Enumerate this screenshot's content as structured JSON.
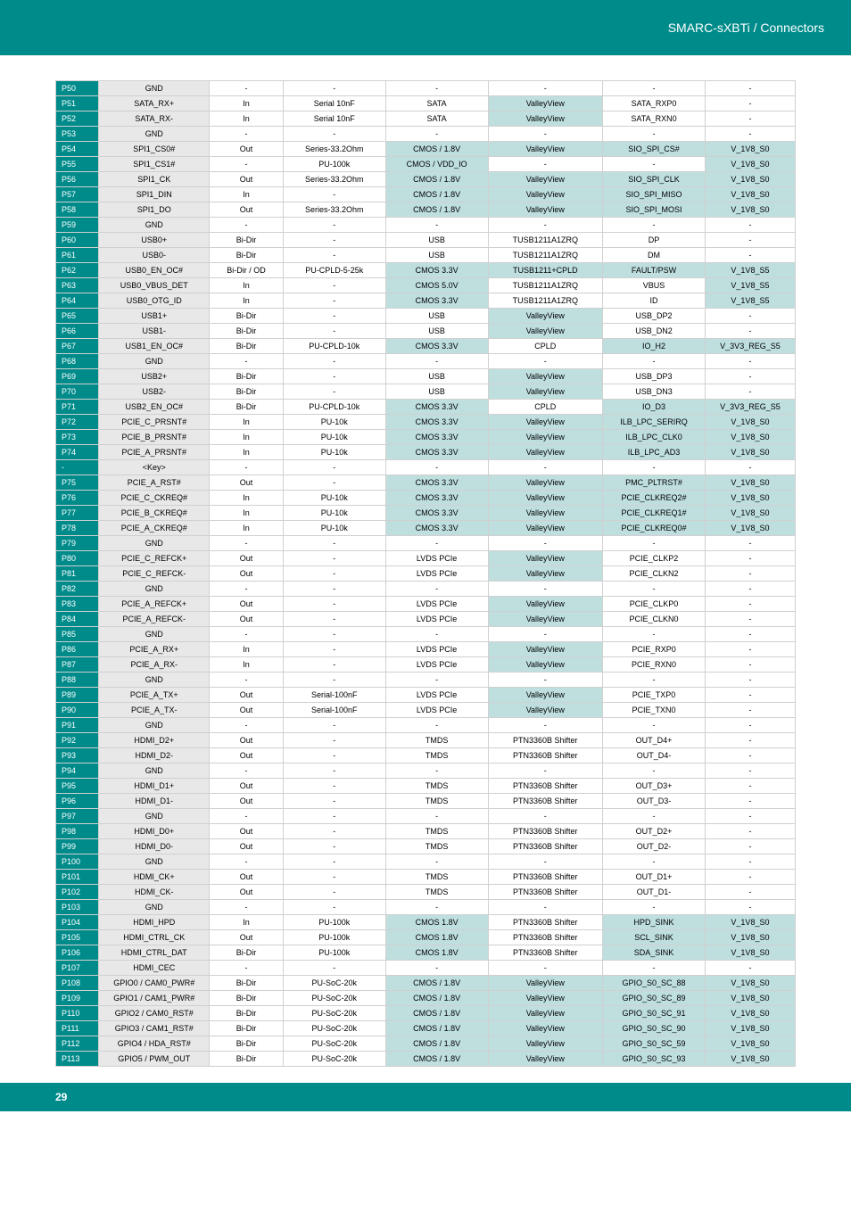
{
  "header": {
    "title": "SMARC-sXBTi / Connectors"
  },
  "footer": {
    "page": "29"
  },
  "styling": {
    "teal": "#008b8b",
    "teal_light": "#bfdfdf",
    "gray_bg": "#e8e8e8",
    "border": "#d0d0d0",
    "font_size_table": 9,
    "font_size_header": 14,
    "font_size_footer": 12
  },
  "columns": [
    "pin",
    "name",
    "dir",
    "term",
    "sig",
    "chip",
    "conn",
    "pwr"
  ],
  "rows": [
    {
      "pin": "P50",
      "name": "GND",
      "dir": "-",
      "term": "-",
      "sig": "-",
      "chip": "-",
      "conn": "-",
      "pwr": "-"
    },
    {
      "pin": "P51",
      "name": "SATA_RX+",
      "dir": "In",
      "term": "Serial 10nF",
      "sig": "SATA",
      "chip": "ValleyView",
      "conn": "SATA_RXP0",
      "pwr": "-"
    },
    {
      "pin": "P52",
      "name": "SATA_RX-",
      "dir": "In",
      "term": "Serial 10nF",
      "sig": "SATA",
      "chip": "ValleyView",
      "conn": "SATA_RXN0",
      "pwr": "-"
    },
    {
      "pin": "P53",
      "name": "GND",
      "dir": "-",
      "term": "-",
      "sig": "-",
      "chip": "-",
      "conn": "-",
      "pwr": "-"
    },
    {
      "pin": "P54",
      "name": "SPI1_CS0#",
      "dir": "Out",
      "term": "Series-33.2Ohm",
      "sig": "CMOS / 1.8V",
      "chip": "ValleyView",
      "conn": "SIO_SPI_CS#",
      "pwr": "V_1V8_S0"
    },
    {
      "pin": "P55",
      "name": "SPI1_CS1#",
      "dir": "-",
      "term": "PU-100k",
      "sig": "CMOS / VDD_IO",
      "chip": "-",
      "conn": "-",
      "pwr": "V_1V8_S0"
    },
    {
      "pin": "P56",
      "name": "SPI1_CK",
      "dir": "Out",
      "term": "Series-33.2Ohm",
      "sig": "CMOS / 1.8V",
      "chip": "ValleyView",
      "conn": "SIO_SPI_CLK",
      "pwr": "V_1V8_S0"
    },
    {
      "pin": "P57",
      "name": "SPI1_DIN",
      "dir": "In",
      "term": "-",
      "sig": "CMOS / 1.8V",
      "chip": "ValleyView",
      "conn": "SIO_SPI_MISO",
      "pwr": "V_1V8_S0"
    },
    {
      "pin": "P58",
      "name": "SPI1_DO",
      "dir": "Out",
      "term": "Series-33.2Ohm",
      "sig": "CMOS / 1.8V",
      "chip": "ValleyView",
      "conn": "SIO_SPI_MOSI",
      "pwr": "V_1V8_S0"
    },
    {
      "pin": "P59",
      "name": "GND",
      "dir": "-",
      "term": "-",
      "sig": "-",
      "chip": "-",
      "conn": "-",
      "pwr": "-"
    },
    {
      "pin": "P60",
      "name": "USB0+",
      "dir": "Bi-Dir",
      "term": "-",
      "sig": "USB",
      "chip": "TUSB1211A1ZRQ",
      "conn": "DP",
      "pwr": "-"
    },
    {
      "pin": "P61",
      "name": "USB0-",
      "dir": "Bi-Dir",
      "term": "-",
      "sig": "USB",
      "chip": "TUSB1211A1ZRQ",
      "conn": "DM",
      "pwr": "-"
    },
    {
      "pin": "P62",
      "name": "USB0_EN_OC#",
      "dir": "Bi-Dir / OD",
      "term": "PU-CPLD-5-25k",
      "sig": "CMOS 3.3V",
      "chip": "TUSB1211+CPLD",
      "conn": "FAULT/PSW",
      "pwr": "V_1V8_S5"
    },
    {
      "pin": "P63",
      "name": "USB0_VBUS_DET",
      "dir": "In",
      "term": "-",
      "sig": "CMOS 5.0V",
      "chip": "TUSB1211A1ZRQ",
      "conn": "VBUS",
      "pwr": "V_1V8_S5"
    },
    {
      "pin": "P64",
      "name": "USB0_OTG_ID",
      "dir": "In",
      "term": "-",
      "sig": "CMOS 3.3V",
      "chip": "TUSB1211A1ZRQ",
      "conn": "ID",
      "pwr": "V_1V8_S5"
    },
    {
      "pin": "P65",
      "name": "USB1+",
      "dir": "Bi-Dir",
      "term": "-",
      "sig": "USB",
      "chip": "ValleyView",
      "conn": "USB_DP2",
      "pwr": "-"
    },
    {
      "pin": "P66",
      "name": "USB1-",
      "dir": "Bi-Dir",
      "term": "-",
      "sig": "USB",
      "chip": "ValleyView",
      "conn": "USB_DN2",
      "pwr": "-"
    },
    {
      "pin": "P67",
      "name": "USB1_EN_OC#",
      "dir": "Bi-Dir",
      "term": "PU-CPLD-10k",
      "sig": "CMOS 3.3V",
      "chip": "CPLD",
      "conn": "IO_H2",
      "pwr": "V_3V3_REG_S5"
    },
    {
      "pin": "P68",
      "name": "GND",
      "dir": "-",
      "term": "-",
      "sig": "-",
      "chip": "-",
      "conn": "-",
      "pwr": "-"
    },
    {
      "pin": "P69",
      "name": "USB2+",
      "dir": "Bi-Dir",
      "term": "-",
      "sig": "USB",
      "chip": "ValleyView",
      "conn": "USB_DP3",
      "pwr": "-"
    },
    {
      "pin": "P70",
      "name": "USB2-",
      "dir": "Bi-Dir",
      "term": "-",
      "sig": "USB",
      "chip": "ValleyView",
      "conn": "USB_DN3",
      "pwr": "-"
    },
    {
      "pin": "P71",
      "name": "USB2_EN_OC#",
      "dir": "Bi-Dir",
      "term": "PU-CPLD-10k",
      "sig": "CMOS 3.3V",
      "chip": "CPLD",
      "conn": "IO_D3",
      "pwr": "V_3V3_REG_S5"
    },
    {
      "pin": "P72",
      "name": "PCIE_C_PRSNT#",
      "dir": "In",
      "term": "PU-10k",
      "sig": "CMOS 3.3V",
      "chip": "ValleyView",
      "conn": "ILB_LPC_SERIRQ",
      "pwr": "V_1V8_S0"
    },
    {
      "pin": "P73",
      "name": "PCIE_B_PRSNT#",
      "dir": "In",
      "term": "PU-10k",
      "sig": "CMOS 3.3V",
      "chip": "ValleyView",
      "conn": "ILB_LPC_CLK0",
      "pwr": "V_1V8_S0"
    },
    {
      "pin": "P74",
      "name": "PCIE_A_PRSNT#",
      "dir": "In",
      "term": "PU-10k",
      "sig": "CMOS 3.3V",
      "chip": "ValleyView",
      "conn": "ILB_LPC_AD3",
      "pwr": "V_1V8_S0"
    },
    {
      "pin": "-",
      "name": "<Key>",
      "dir": "-",
      "term": "-",
      "sig": "-",
      "chip": "-",
      "conn": "-",
      "pwr": "-"
    },
    {
      "pin": "P75",
      "name": "PCIE_A_RST#",
      "dir": "Out",
      "term": "-",
      "sig": "CMOS 3.3V",
      "chip": "ValleyView",
      "conn": "PMC_PLTRST#",
      "pwr": "V_1V8_S0"
    },
    {
      "pin": "P76",
      "name": "PCIE_C_CKREQ#",
      "dir": "In",
      "term": "PU-10k",
      "sig": "CMOS 3.3V",
      "chip": "ValleyView",
      "conn": "PCIE_CLKREQ2#",
      "pwr": "V_1V8_S0"
    },
    {
      "pin": "P77",
      "name": "PCIE_B_CKREQ#",
      "dir": "In",
      "term": "PU-10k",
      "sig": "CMOS 3.3V",
      "chip": "ValleyView",
      "conn": "PCIE_CLKREQ1#",
      "pwr": "V_1V8_S0"
    },
    {
      "pin": "P78",
      "name": "PCIE_A_CKREQ#",
      "dir": "In",
      "term": "PU-10k",
      "sig": "CMOS 3.3V",
      "chip": "ValleyView",
      "conn": "PCIE_CLKREQ0#",
      "pwr": "V_1V8_S0"
    },
    {
      "pin": "P79",
      "name": "GND",
      "dir": "-",
      "term": "-",
      "sig": "-",
      "chip": "-",
      "conn": "-",
      "pwr": "-"
    },
    {
      "pin": "P80",
      "name": "PCIE_C_REFCK+",
      "dir": "Out",
      "term": "-",
      "sig": "LVDS PCIe",
      "chip": "ValleyView",
      "conn": "PCIE_CLKP2",
      "pwr": "-"
    },
    {
      "pin": "P81",
      "name": "PCIE_C_REFCK-",
      "dir": "Out",
      "term": "-",
      "sig": "LVDS PCIe",
      "chip": "ValleyView",
      "conn": "PCIE_CLKN2",
      "pwr": "-"
    },
    {
      "pin": "P82",
      "name": "GND",
      "dir": "-",
      "term": "-",
      "sig": "-",
      "chip": "-",
      "conn": "-",
      "pwr": "-"
    },
    {
      "pin": "P83",
      "name": "PCIE_A_REFCK+",
      "dir": "Out",
      "term": "-",
      "sig": "LVDS PCIe",
      "chip": "ValleyView",
      "conn": "PCIE_CLKP0",
      "pwr": "-"
    },
    {
      "pin": "P84",
      "name": "PCIE_A_REFCK-",
      "dir": "Out",
      "term": "-",
      "sig": "LVDS PCIe",
      "chip": "ValleyView",
      "conn": "PCIE_CLKN0",
      "pwr": "-"
    },
    {
      "pin": "P85",
      "name": "GND",
      "dir": "-",
      "term": "-",
      "sig": "-",
      "chip": "-",
      "conn": "-",
      "pwr": "-"
    },
    {
      "pin": "P86",
      "name": "PCIE_A_RX+",
      "dir": "In",
      "term": "-",
      "sig": "LVDS PCIe",
      "chip": "ValleyView",
      "conn": "PCIE_RXP0",
      "pwr": "-"
    },
    {
      "pin": "P87",
      "name": "PCIE_A_RX-",
      "dir": "In",
      "term": "-",
      "sig": "LVDS PCIe",
      "chip": "ValleyView",
      "conn": "PCIE_RXN0",
      "pwr": "-"
    },
    {
      "pin": "P88",
      "name": "GND",
      "dir": "-",
      "term": "-",
      "sig": "-",
      "chip": "-",
      "conn": "-",
      "pwr": "-"
    },
    {
      "pin": "P89",
      "name": "PCIE_A_TX+",
      "dir": "Out",
      "term": "Serial-100nF",
      "sig": "LVDS PCIe",
      "chip": "ValleyView",
      "conn": "PCIE_TXP0",
      "pwr": "-"
    },
    {
      "pin": "P90",
      "name": "PCIE_A_TX-",
      "dir": "Out",
      "term": "Serial-100nF",
      "sig": "LVDS PCIe",
      "chip": "ValleyView",
      "conn": "PCIE_TXN0",
      "pwr": "-"
    },
    {
      "pin": "P91",
      "name": "GND",
      "dir": "-",
      "term": "-",
      "sig": "-",
      "chip": "-",
      "conn": "-",
      "pwr": "-"
    },
    {
      "pin": "P92",
      "name": "HDMI_D2+",
      "dir": "Out",
      "term": "-",
      "sig": "TMDS",
      "chip": "PTN3360B Shifter",
      "conn": "OUT_D4+",
      "pwr": "-"
    },
    {
      "pin": "P93",
      "name": "HDMI_D2-",
      "dir": "Out",
      "term": "-",
      "sig": "TMDS",
      "chip": "PTN3360B Shifter",
      "conn": "OUT_D4-",
      "pwr": "-"
    },
    {
      "pin": "P94",
      "name": "GND",
      "dir": "-",
      "term": "-",
      "sig": "-",
      "chip": "-",
      "conn": "-",
      "pwr": "-"
    },
    {
      "pin": "P95",
      "name": "HDMI_D1+",
      "dir": "Out",
      "term": "-",
      "sig": "TMDS",
      "chip": "PTN3360B Shifter",
      "conn": "OUT_D3+",
      "pwr": "-"
    },
    {
      "pin": "P96",
      "name": "HDMI_D1-",
      "dir": "Out",
      "term": "-",
      "sig": "TMDS",
      "chip": "PTN3360B Shifter",
      "conn": "OUT_D3-",
      "pwr": "-"
    },
    {
      "pin": "P97",
      "name": "GND",
      "dir": "-",
      "term": "-",
      "sig": "-",
      "chip": "-",
      "conn": "-",
      "pwr": "-"
    },
    {
      "pin": "P98",
      "name": "HDMI_D0+",
      "dir": "Out",
      "term": "-",
      "sig": "TMDS",
      "chip": "PTN3360B Shifter",
      "conn": "OUT_D2+",
      "pwr": "-"
    },
    {
      "pin": "P99",
      "name": "HDMI_D0-",
      "dir": "Out",
      "term": "-",
      "sig": "TMDS",
      "chip": "PTN3360B Shifter",
      "conn": "OUT_D2-",
      "pwr": "-"
    },
    {
      "pin": "P100",
      "name": "GND",
      "dir": "-",
      "term": "-",
      "sig": "-",
      "chip": "-",
      "conn": "-",
      "pwr": "-"
    },
    {
      "pin": "P101",
      "name": "HDMI_CK+",
      "dir": "Out",
      "term": "-",
      "sig": "TMDS",
      "chip": "PTN3360B Shifter",
      "conn": "OUT_D1+",
      "pwr": "-"
    },
    {
      "pin": "P102",
      "name": "HDMI_CK-",
      "dir": "Out",
      "term": "-",
      "sig": "TMDS",
      "chip": "PTN3360B Shifter",
      "conn": "OUT_D1-",
      "pwr": "-"
    },
    {
      "pin": "P103",
      "name": "GND",
      "dir": "-",
      "term": "-",
      "sig": "-",
      "chip": "-",
      "conn": "-",
      "pwr": "-"
    },
    {
      "pin": "P104",
      "name": "HDMI_HPD",
      "dir": "In",
      "term": "PU-100k",
      "sig": "CMOS 1.8V",
      "chip": "PTN3360B Shifter",
      "conn": "HPD_SINK",
      "pwr": "V_1V8_S0"
    },
    {
      "pin": "P105",
      "name": "HDMI_CTRL_CK",
      "dir": "Out",
      "term": "PU-100k",
      "sig": "CMOS 1.8V",
      "chip": "PTN3360B Shifter",
      "conn": "SCL_SINK",
      "pwr": "V_1V8_S0"
    },
    {
      "pin": "P106",
      "name": "HDMI_CTRL_DAT",
      "dir": "Bi-Dir",
      "term": "PU-100k",
      "sig": "CMOS 1.8V",
      "chip": "PTN3360B Shifter",
      "conn": "SDA_SINK",
      "pwr": "V_1V8_S0"
    },
    {
      "pin": "P107",
      "name": "HDMI_CEC",
      "dir": "-",
      "term": "-",
      "sig": "-",
      "chip": "-",
      "conn": "-",
      "pwr": "-"
    },
    {
      "pin": "P108",
      "name": "GPIO0 / CAM0_PWR#",
      "dir": "Bi-Dir",
      "term": "PU-SoC-20k",
      "sig": "CMOS / 1.8V",
      "chip": "ValleyView",
      "conn": "GPIO_S0_SC_88",
      "pwr": "V_1V8_S0"
    },
    {
      "pin": "P109",
      "name": "GPIO1 / CAM1_PWR#",
      "dir": "Bi-Dir",
      "term": "PU-SoC-20k",
      "sig": "CMOS / 1.8V",
      "chip": "ValleyView",
      "conn": "GPIO_S0_SC_89",
      "pwr": "V_1V8_S0"
    },
    {
      "pin": "P110",
      "name": "GPIO2 / CAM0_RST#",
      "dir": "Bi-Dir",
      "term": "PU-SoC-20k",
      "sig": "CMOS / 1.8V",
      "chip": "ValleyView",
      "conn": "GPIO_S0_SC_91",
      "pwr": "V_1V8_S0"
    },
    {
      "pin": "P111",
      "name": "GPIO3 / CAM1_RST#",
      "dir": "Bi-Dir",
      "term": "PU-SoC-20k",
      "sig": "CMOS / 1.8V",
      "chip": "ValleyView",
      "conn": "GPIO_S0_SC_90",
      "pwr": "V_1V8_S0"
    },
    {
      "pin": "P112",
      "name": "GPIO4 / HDA_RST#",
      "dir": "Bi-Dir",
      "term": "PU-SoC-20k",
      "sig": "CMOS / 1.8V",
      "chip": "ValleyView",
      "conn": "GPIO_S0_SC_59",
      "pwr": "V_1V8_S0"
    },
    {
      "pin": "P113",
      "name": "GPIO5 / PWM_OUT",
      "dir": "Bi-Dir",
      "term": "PU-SoC-20k",
      "sig": "CMOS / 1.8V",
      "chip": "ValleyView",
      "conn": "GPIO_S0_SC_93",
      "pwr": "V_1V8_S0"
    }
  ],
  "blue_cols": {
    "sig_rows": [
      "P54",
      "P55",
      "P56",
      "P57",
      "P58",
      "P62",
      "P63",
      "P64",
      "P67",
      "P71",
      "P72",
      "P73",
      "P74",
      "P75",
      "P76",
      "P77",
      "P78",
      "P104",
      "P105",
      "P106",
      "P108",
      "P109",
      "P110",
      "P111",
      "P112",
      "P113"
    ],
    "chip_rows": [
      "P51",
      "P52",
      "P54",
      "P56",
      "P57",
      "P58",
      "P62",
      "P65",
      "P66",
      "P69",
      "P70",
      "P72",
      "P73",
      "P74",
      "P75",
      "P76",
      "P77",
      "P78",
      "P80",
      "P81",
      "P83",
      "P84",
      "P86",
      "P87",
      "P89",
      "P90",
      "P108",
      "P109",
      "P110",
      "P111",
      "P112",
      "P113"
    ],
    "conn_rows": [
      "P54",
      "P56",
      "P57",
      "P58",
      "P62",
      "P67",
      "P71",
      "P72",
      "P73",
      "P74",
      "P75",
      "P76",
      "P77",
      "P78",
      "P104",
      "P105",
      "P106",
      "P108",
      "P109",
      "P110",
      "P111",
      "P112",
      "P113"
    ],
    "pwr_rows": [
      "P54",
      "P55",
      "P56",
      "P57",
      "P58",
      "P62",
      "P63",
      "P64",
      "P67",
      "P71",
      "P72",
      "P73",
      "P74",
      "P75",
      "P76",
      "P77",
      "P78",
      "P104",
      "P105",
      "P106",
      "P108",
      "P109",
      "P110",
      "P111",
      "P112",
      "P113"
    ]
  }
}
